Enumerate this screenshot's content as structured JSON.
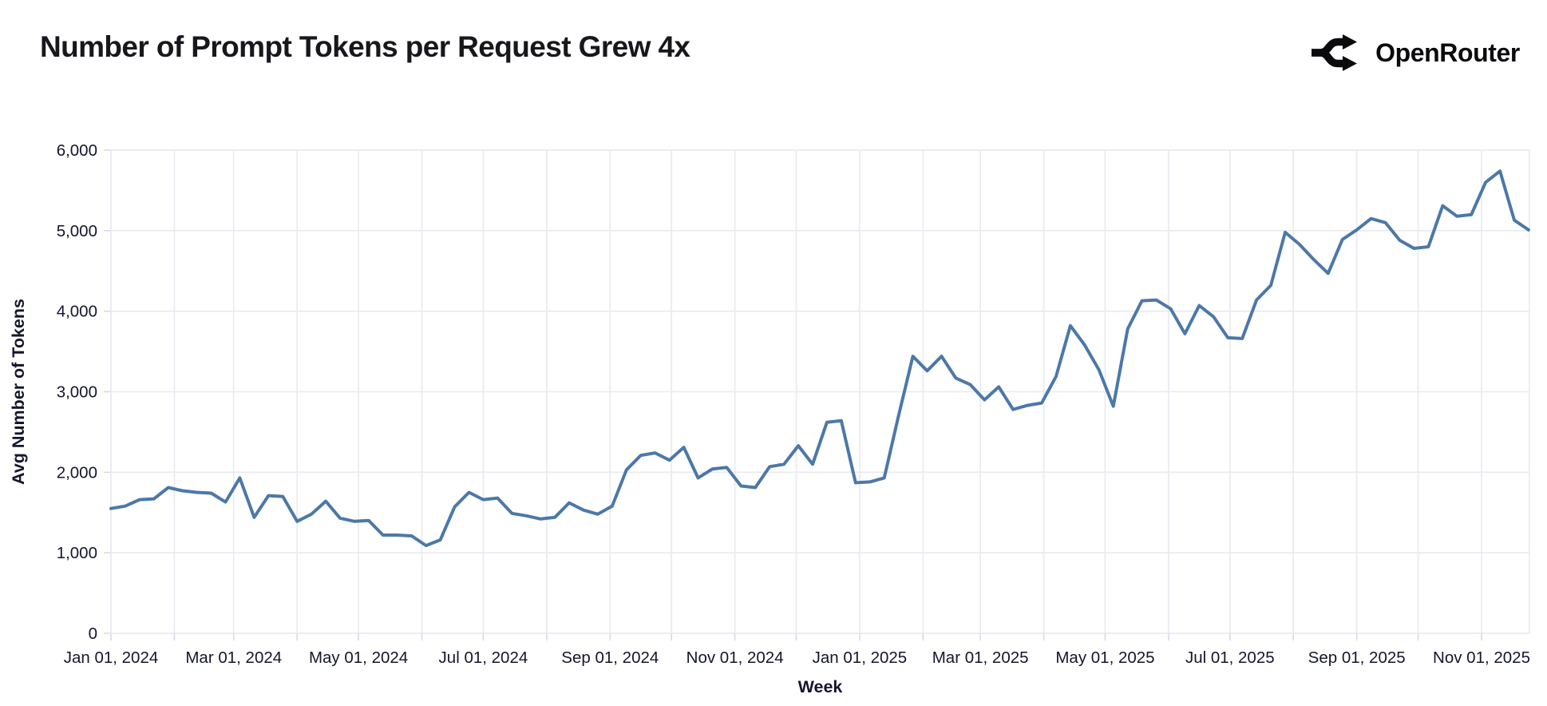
{
  "header": {
    "title": "Number of Prompt Tokens per Request Grew 4x",
    "brand_name": "OpenRouter"
  },
  "chart_data": {
    "type": "line",
    "title": "Number of Prompt Tokens per Request Grew 4x",
    "xlabel": "Week",
    "ylabel": "Avg Number of Tokens",
    "x_start_date": "2024-01-01",
    "x_interval_days": 7,
    "x_end_date": "2025-11-24",
    "ylim": [
      0,
      6000
    ],
    "yticks": [
      0,
      1000,
      2000,
      3000,
      4000,
      5000,
      6000
    ],
    "ytick_labels": [
      "0",
      "1,000",
      "2,000",
      "3,000",
      "4,000",
      "5,000",
      "6,000"
    ],
    "xtick_labels": [
      "Jan 01, 2024",
      "Mar 01, 2024",
      "May 01, 2024",
      "Jul 01, 2024",
      "Sep 01, 2024",
      "Nov 01, 2024",
      "Jan 01, 2025",
      "Mar 01, 2025",
      "May 01, 2025",
      "Jul 01, 2025",
      "Sep 01, 2025",
      "Nov 01, 2025"
    ],
    "grid": true,
    "legend": false,
    "line_color": "#4c78a8",
    "grid_color": "#e9e9f0",
    "tick_color": "#d9dae3",
    "label_color": "#15152f",
    "values": [
      1550,
      1580,
      1660,
      1670,
      1810,
      1770,
      1750,
      1740,
      1630,
      1930,
      1440,
      1710,
      1700,
      1390,
      1480,
      1640,
      1430,
      1390,
      1400,
      1220,
      1220,
      1210,
      1090,
      1160,
      1570,
      1750,
      1660,
      1680,
      1490,
      1460,
      1420,
      1440,
      1620,
      1530,
      1480,
      1580,
      2030,
      2210,
      2240,
      2150,
      2310,
      1930,
      2040,
      2060,
      1830,
      1810,
      2070,
      2100,
      2330,
      2100,
      2620,
      2640,
      1870,
      1880,
      1930,
      2700,
      3440,
      3260,
      3440,
      3170,
      3090,
      2900,
      3060,
      2780,
      2830,
      2860,
      3190,
      3820,
      3580,
      3270,
      2820,
      3780,
      4130,
      4140,
      4030,
      3720,
      4070,
      3930,
      3670,
      3660,
      4140,
      4320,
      4980,
      4830,
      4640,
      4470,
      4890,
      5010,
      5150,
      5100,
      4880,
      4780,
      4800,
      5310,
      5180,
      5200,
      5600,
      5740,
      5130,
      5010
    ]
  }
}
